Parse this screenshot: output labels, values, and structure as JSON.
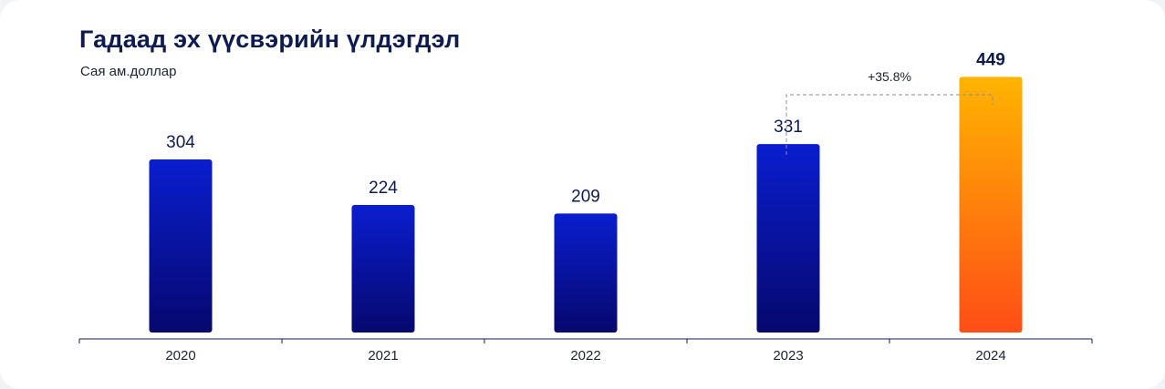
{
  "title": "Гадаад эх үүсвэрийн үлдэгдэл",
  "subtitle": "Сая ам.доллар",
  "colors": {
    "bar_top": "#0a1ecf",
    "bar_bottom": "#06086e",
    "highlight_top": "#ffb400",
    "highlight_bottom": "#ff4d16",
    "text": "#0d1b4f",
    "axis": "#0d1b4f",
    "bracket": "#8a8f99"
  },
  "chart_data": {
    "type": "bar",
    "categories": [
      "2020",
      "2021",
      "2022",
      "2023",
      "2024"
    ],
    "values": [
      304,
      224,
      209,
      331,
      449
    ],
    "value_labels": [
      "304",
      "224",
      "209",
      "331",
      "449"
    ],
    "highlight_index": 4,
    "ylim": [
      0,
      520
    ],
    "grid": false,
    "annotation": {
      "text": "+35.8%",
      "from_category": "2023",
      "to_category": "2024"
    }
  }
}
